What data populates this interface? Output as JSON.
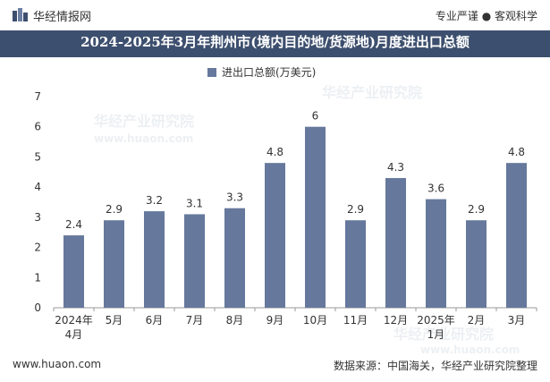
{
  "header": {
    "brand": "华经情报网",
    "tagline": "专业严谨 ● 客观科学",
    "title": "2024-2025年3月年荆州市(境内目的地/货源地)月度进出口总额"
  },
  "footer": {
    "website": "www.huaon.com",
    "source": "数据来源：中国海关，华经产业研究院整理"
  },
  "watermarks": [
    "华经产业研究院",
    "www.huaon.com"
  ],
  "colors": {
    "bar": "#66789c",
    "header_bg": "#3d4f6e"
  },
  "chart_data": {
    "type": "bar",
    "title": "2024-2025年3月年荆州市(境内目的地/货源地)月度进出口总额",
    "categories": [
      "2024年 4月",
      "5月",
      "6月",
      "7月",
      "8月",
      "9月",
      "10月",
      "11月",
      "12月",
      "2025年 1月",
      "2月",
      "3月"
    ],
    "series": [
      {
        "name": "进出口总额(万美元)",
        "values": [
          2.4,
          2.9,
          3.2,
          3.1,
          3.3,
          4.8,
          6,
          2.9,
          4.3,
          3.6,
          2.9,
          4.8
        ]
      }
    ],
    "ylim": [
      0,
      7
    ],
    "yticks": [
      0,
      1,
      2,
      3,
      4,
      5,
      6,
      7
    ],
    "xlabel": "",
    "ylabel": "",
    "legend": "top-center"
  }
}
